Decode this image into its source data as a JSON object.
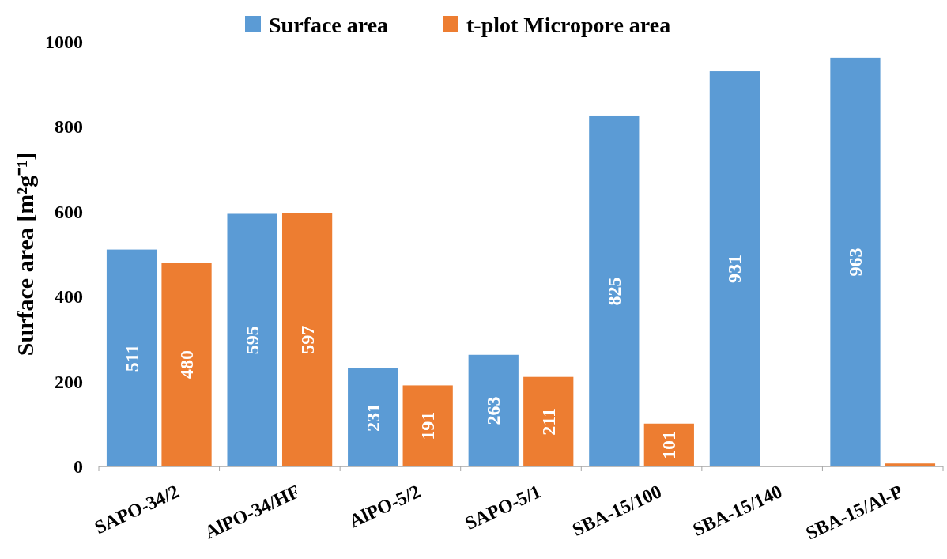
{
  "chart_data": {
    "type": "bar",
    "ylabel": "Surface area [m²g⁻¹]",
    "categories": [
      "SAPO-34/2",
      "AlPO-34/HF",
      "AlPO-5/2",
      "SAPO-5/1",
      "SBA-15/100",
      "SBA-15/140",
      "SBA-15/Al-P"
    ],
    "series": [
      {
        "name": "Surface area",
        "color": "#5b9bd5",
        "values": [
          511,
          595,
          231,
          263,
          825,
          931,
          963
        ],
        "value_labels": [
          "511",
          "595",
          "231",
          "263",
          "825",
          "931",
          "963"
        ]
      },
      {
        "name": "t-plot Micropore area",
        "color": "#ed7d31",
        "values": [
          480,
          597,
          191,
          211,
          101,
          null,
          7
        ],
        "value_labels": [
          "480",
          "597",
          "191",
          "211",
          "101",
          null,
          null
        ]
      }
    ],
    "ylim": [
      0,
      1000
    ],
    "yticks": [
      0,
      200,
      400,
      600,
      800,
      1000
    ],
    "grid": false,
    "legend": "top"
  }
}
